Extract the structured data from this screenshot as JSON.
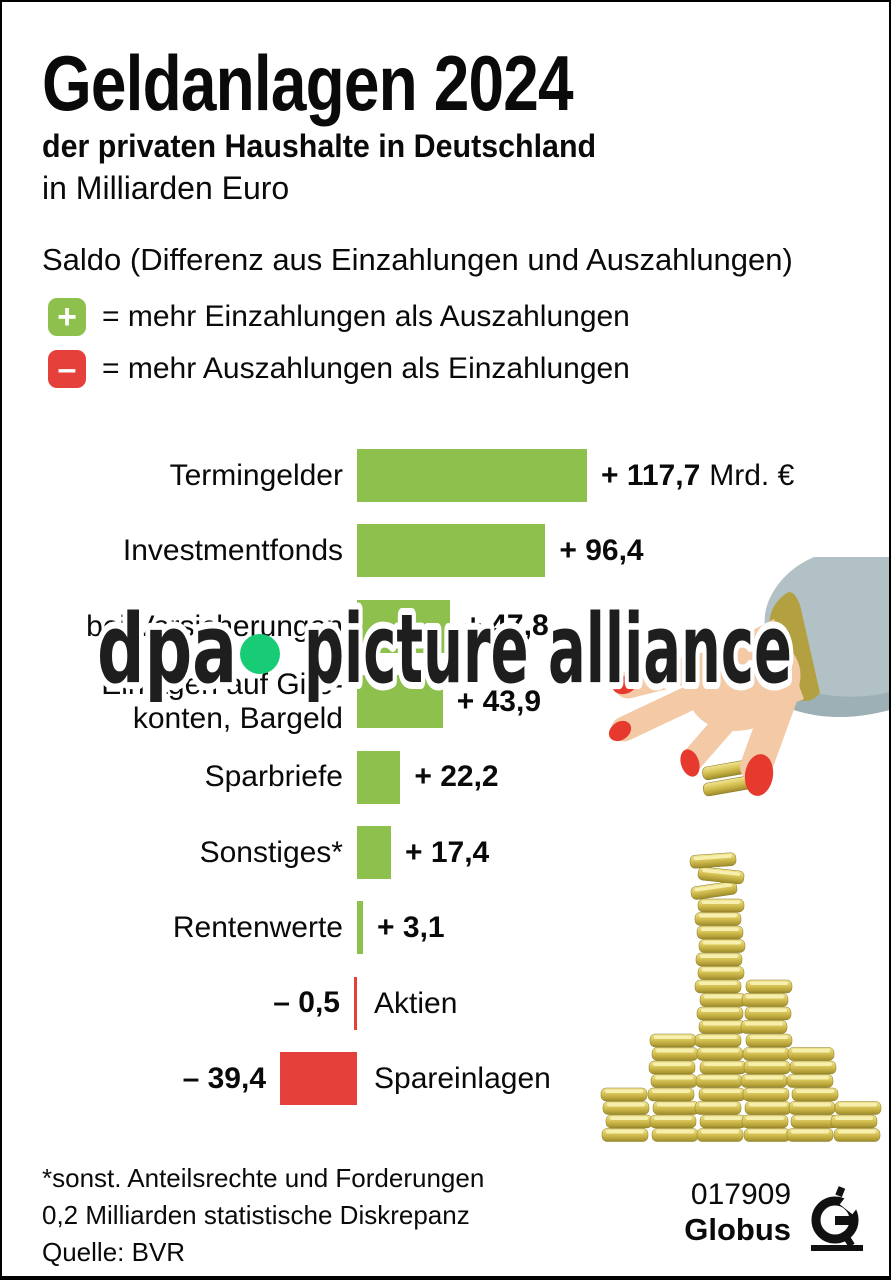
{
  "header": {
    "title": "Geldanlagen 2024",
    "subtitle_bold": "der privaten Haushalte in Deutschland",
    "subtitle": "in Milliarden Euro"
  },
  "legend": {
    "saldo_label": "Saldo (Differenz aus Einzahlungen und Auszahlungen)",
    "plus_symbol": "+",
    "plus_text": "= mehr Einzahlungen als Auszahlungen",
    "minus_symbol": "–",
    "minus_text": "= mehr Auszahlungen als Einzahlungen",
    "plus_color": "#8dc04c",
    "minus_color": "#e5413a"
  },
  "chart_data": {
    "type": "bar",
    "orientation": "horizontal",
    "unit": "Mrd. €",
    "categories": [
      "Termingelder",
      "Investmentfonds",
      "bei Versicherungen",
      "Einlagen auf Giro-\nkonten, Bargeld",
      "Sparbriefe",
      "Sonstiges*",
      "Rentenwerte",
      "Aktien",
      "Spareinlagen"
    ],
    "values": [
      117.7,
      96.4,
      47.8,
      43.9,
      22.2,
      17.4,
      3.1,
      -0.5,
      -39.4
    ],
    "value_labels": [
      "+ 117,7",
      "+ 96,4",
      "+ 47,8",
      "+ 43,9",
      "+ 22,2",
      "+ 17,4",
      "+ 3,1",
      "– 0,5",
      "– 39,4"
    ],
    "value_suffixes": [
      "Mrd. €",
      "",
      "",
      "",
      "",
      "",
      "",
      "",
      ""
    ],
    "positive_color": "#8dc04c",
    "negative_color": "#e5413a",
    "legend_position": "top",
    "grid": false
  },
  "watermark": {
    "part1": "dpa",
    "part2": "picture alliance",
    "dot_color": "#17cc74"
  },
  "footnotes": [
    "*sonst. Anteilsrechte und Forderungen",
    "0,2 Milliarden statistische Diskrepanz",
    "Quelle: BVR"
  ],
  "branding": {
    "number": "017909",
    "name": "Globus"
  }
}
